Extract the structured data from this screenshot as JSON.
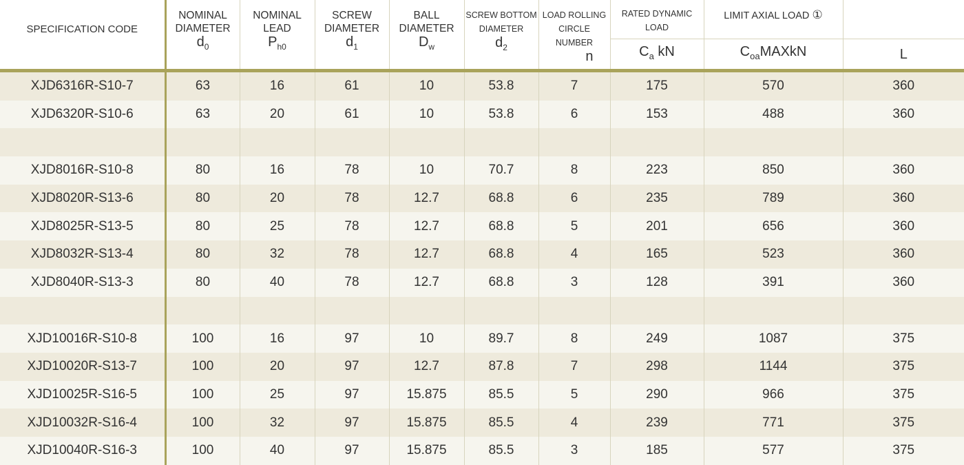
{
  "header": {
    "spec": "SPECIFICATION CODE",
    "col1": {
      "line1": "NOMINAL",
      "line2": "DIAMETER",
      "sym": "d",
      "sub": "0"
    },
    "col2": {
      "line1": "NOMINAL",
      "line2": "LEAD",
      "sym": "P",
      "sub": "h0"
    },
    "col3": {
      "line1": "SCREW",
      "line2": "DIAMETER",
      "sym": "d",
      "sub": "1"
    },
    "col4": {
      "line1": "BALL",
      "line2": "DIAMETER",
      "sym": "D",
      "sub": "w"
    },
    "col5": {
      "line1": "SCREW BOTTOM",
      "line2": "DIAMETER",
      "sym": "d",
      "sub": "2"
    },
    "col6": {
      "line1": "LOAD ROLLING",
      "line2": "CIRCLE NUMBER",
      "sym": "n"
    },
    "col7": {
      "line1": "RATED DYNAMIC",
      "line2": "LOAD",
      "unit_sym": "C",
      "unit_sub": "a",
      "unit_rest": " kN"
    },
    "col8": {
      "label": "LIMIT AXIAL LOAD ",
      "mark": "①",
      "unit_sym": "C",
      "unit_sub": "oa",
      "unit_rest": "MAXkN"
    },
    "col9": {
      "unit": "L"
    }
  },
  "rows": [
    [
      "XJD6316R-S10-7",
      "63",
      "16",
      "61",
      "10",
      "53.8",
      "7",
      "175",
      "570",
      "360"
    ],
    [
      "XJD6320R-S10-6",
      "63",
      "20",
      "61",
      "10",
      "53.8",
      "6",
      "153",
      "488",
      "360"
    ],
    [
      "",
      "",
      "",
      "",
      "",
      "",
      "",
      "",
      "",
      ""
    ],
    [
      "XJD8016R-S10-8",
      "80",
      "16",
      "78",
      "10",
      "70.7",
      "8",
      "223",
      "850",
      "360"
    ],
    [
      "XJD8020R-S13-6",
      "80",
      "20",
      "78",
      "12.7",
      "68.8",
      "6",
      "235",
      "789",
      "360"
    ],
    [
      "XJD8025R-S13-5",
      "80",
      "25",
      "78",
      "12.7",
      "68.8",
      "5",
      "201",
      "656",
      "360"
    ],
    [
      "XJD8032R-S13-4",
      "80",
      "32",
      "78",
      "12.7",
      "68.8",
      "4",
      "165",
      "523",
      "360"
    ],
    [
      "XJD8040R-S13-3",
      "80",
      "40",
      "78",
      "12.7",
      "68.8",
      "3",
      "128",
      "391",
      "360"
    ],
    [
      "",
      "",
      "",
      "",
      "",
      "",
      "",
      "",
      "",
      ""
    ],
    [
      "XJD10016R-S10-8",
      "100",
      "16",
      "97",
      "10",
      "89.7",
      "8",
      "249",
      "1087",
      "375"
    ],
    [
      "XJD10020R-S13-7",
      "100",
      "20",
      "97",
      "12.7",
      "87.8",
      "7",
      "298",
      "1144",
      "375"
    ],
    [
      "XJD10025R-S16-5",
      "100",
      "25",
      "97",
      "15.875",
      "85.5",
      "5",
      "290",
      "966",
      "375"
    ],
    [
      "XJD10032R-S16-4",
      "100",
      "32",
      "97",
      "15.875",
      "85.5",
      "4",
      "239",
      "771",
      "375"
    ],
    [
      "XJD10040R-S16-3",
      "100",
      "40",
      "97",
      "15.875",
      "85.5",
      "3",
      "185",
      "577",
      "375"
    ]
  ],
  "colors": {
    "accent": "#a9a35b",
    "row_odd": "#eeeadc",
    "row_even": "#f6f5ee"
  }
}
